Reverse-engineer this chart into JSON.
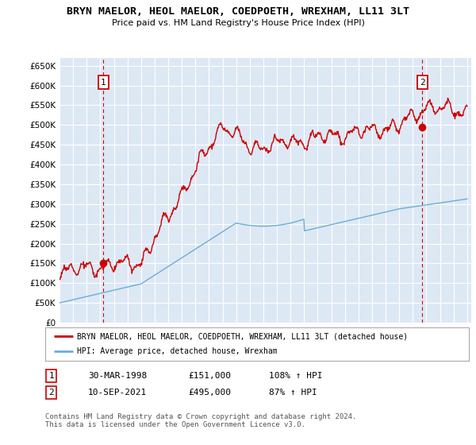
{
  "title": "BRYN MAELOR, HEOL MAELOR, COEDPOETH, WREXHAM, LL11 3LT",
  "subtitle": "Price paid vs. HM Land Registry's House Price Index (HPI)",
  "ylim": [
    0,
    670000
  ],
  "yticks": [
    0,
    50000,
    100000,
    150000,
    200000,
    250000,
    300000,
    350000,
    400000,
    450000,
    500000,
    550000,
    600000,
    650000
  ],
  "ytick_labels": [
    "£0",
    "£50K",
    "£100K",
    "£150K",
    "£200K",
    "£250K",
    "£300K",
    "£350K",
    "£400K",
    "£450K",
    "£500K",
    "£550K",
    "£600K",
    "£650K"
  ],
  "hpi_color": "#6baed6",
  "price_color": "#cc0000",
  "bg_color": "#dde8f5",
  "grid_color": "#ffffff",
  "marker1_year": 1998.23,
  "marker1_value": 151000,
  "marker2_year": 2021.7,
  "marker2_value": 495000,
  "legend_label1": "BRYN MAELOR, HEOL MAELOR, COEDPOETH, WREXHAM, LL11 3LT (detached house)",
  "legend_label2": "HPI: Average price, detached house, Wrexham",
  "table_row1": [
    "1",
    "30-MAR-1998",
    "£151,000",
    "108% ↑ HPI"
  ],
  "table_row2": [
    "2",
    "10-SEP-2021",
    "£495,000",
    "87% ↑ HPI"
  ],
  "footer": "Contains HM Land Registry data © Crown copyright and database right 2024.\nThis data is licensed under the Open Government Licence v3.0."
}
